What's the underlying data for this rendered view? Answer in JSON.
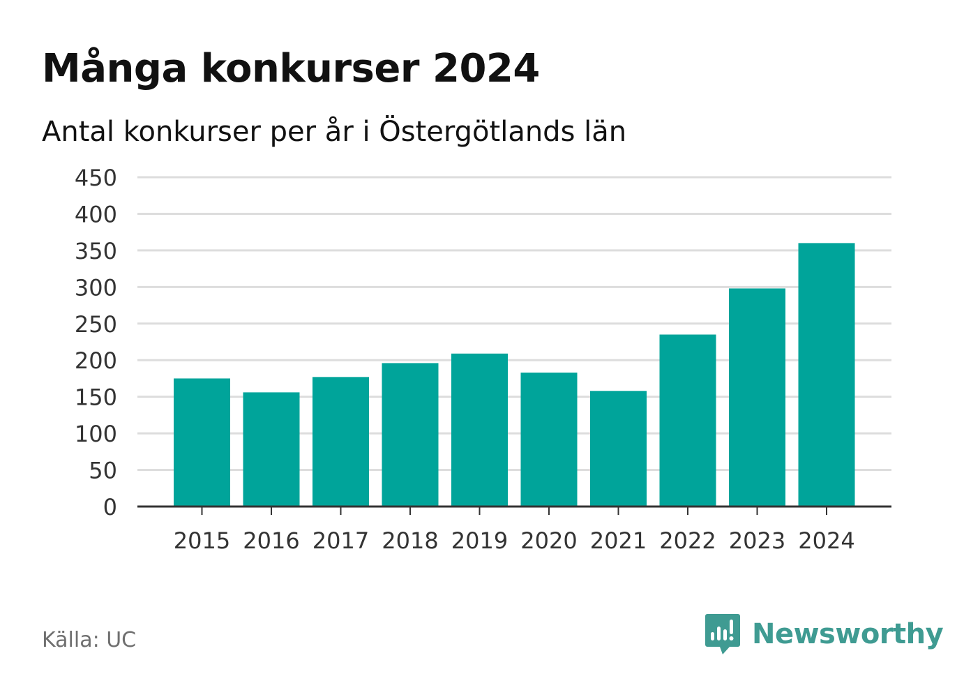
{
  "title": "Många konkurser 2024",
  "subtitle": "Antal konkurser per år i Östergötlands län",
  "source": "Källa: UC",
  "brand": {
    "name": "Newsworthy",
    "icon": "newsworthy-logo-icon",
    "color": "#3f9b92"
  },
  "colors": {
    "bar": "#00a49a",
    "grid": "#dddddd",
    "axis": "#333333",
    "text": "#333333"
  },
  "chart_data": {
    "type": "bar",
    "categories": [
      "2015",
      "2016",
      "2017",
      "2018",
      "2019",
      "2020",
      "2021",
      "2022",
      "2023",
      "2024"
    ],
    "values": [
      175,
      156,
      177,
      196,
      209,
      183,
      158,
      235,
      298,
      360
    ],
    "ylim": [
      0,
      450
    ],
    "yticks": [
      0,
      50,
      100,
      150,
      200,
      250,
      300,
      350,
      400,
      450
    ],
    "xlabel": "",
    "ylabel": "",
    "grid": true,
    "legend": "none"
  }
}
